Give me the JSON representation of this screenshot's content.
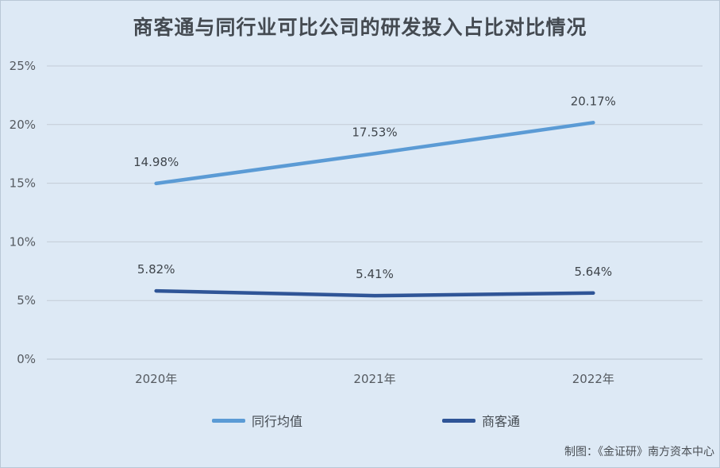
{
  "chart_data": {
    "type": "line",
    "title": "商客通与同行业可比公司的研发投入占比对比情况",
    "categories": [
      "2020年",
      "2021年",
      "2022年"
    ],
    "series": [
      {
        "name": "同行均值",
        "color": "#5b9bd5",
        "values": [
          14.98,
          17.53,
          20.17
        ],
        "labels": [
          "14.98%",
          "17.53%",
          "20.17%"
        ]
      },
      {
        "name": "商客通",
        "color": "#2f5597",
        "values": [
          5.82,
          5.41,
          5.64
        ],
        "labels": [
          "5.82%",
          "5.41%",
          "5.64%"
        ]
      }
    ],
    "ylim": [
      0,
      25
    ],
    "yticks": [
      0,
      5,
      10,
      15,
      20,
      25
    ],
    "ytick_labels": [
      "0%",
      "5%",
      "10%",
      "15%",
      "20%",
      "25%"
    ],
    "grid": true,
    "legend_position": "bottom"
  },
  "source_note": "制图：《金证研》南方资本中心"
}
